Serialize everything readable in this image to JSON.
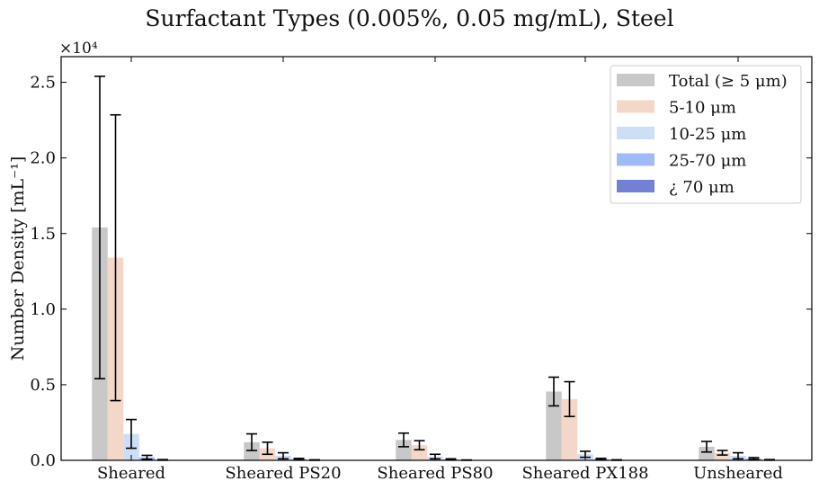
{
  "chart_data": {
    "type": "bar",
    "title": "Surfactant Types (0.005%, 0.05 mg/mL), Steel",
    "xlabel": "",
    "ylabel": "Number Density [mL⁻¹]",
    "y_multiplier": "×10⁴",
    "ylim": [
      0,
      26700
    ],
    "yticks": [
      0,
      5000,
      10000,
      15000,
      20000,
      25000
    ],
    "ytick_labels": [
      "0.0",
      "0.5",
      "1.0",
      "1.5",
      "2.0",
      "2.5"
    ],
    "categories": [
      "Sheared",
      "Sheared PS20",
      "Sheared PS80",
      "Sheared PX188",
      "Unsheared"
    ],
    "legend_position": "top-right",
    "grid": false,
    "series": [
      {
        "name": "Total (≥ 5 μm)",
        "color": "#c8c8c8",
        "values": [
          15400,
          1200,
          1350,
          4550,
          900
        ],
        "errors": [
          10000,
          550,
          450,
          950,
          350
        ]
      },
      {
        "name": "5-10 μm",
        "color": "#f3d7c8",
        "values": [
          13400,
          800,
          1000,
          4050,
          500
        ],
        "errors": [
          9450,
          400,
          300,
          1150,
          150
        ]
      },
      {
        "name": "10-25 μm",
        "color": "#cddff7",
        "values": [
          1750,
          300,
          250,
          400,
          300
        ],
        "errors": [
          950,
          200,
          150,
          200,
          200
        ]
      },
      {
        "name": "25-70 μm",
        "color": "#a0baf8",
        "values": [
          200,
          80,
          60,
          80,
          120
        ],
        "errors": [
          130,
          50,
          40,
          50,
          60
        ]
      },
      {
        "name": "¿ 70 μm",
        "color": "#7280d6",
        "values": [
          30,
          20,
          15,
          20,
          30
        ],
        "errors": [
          20,
          15,
          10,
          15,
          20
        ]
      }
    ]
  }
}
